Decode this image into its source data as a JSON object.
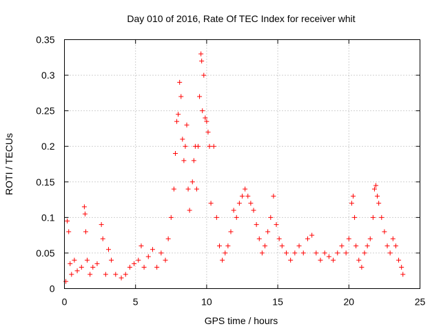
{
  "chart_data": {
    "type": "scatter",
    "title": "Day 010 of 2016, Rate Of TEC Index for receiver whit",
    "xlabel": "GPS time / hours",
    "ylabel": "ROTI / TECUs",
    "xlim": [
      0,
      25
    ],
    "ylim": [
      0,
      0.35
    ],
    "x_ticks": [
      0,
      5,
      10,
      15,
      20,
      25
    ],
    "y_ticks": [
      0,
      0.05,
      0.1,
      0.15,
      0.2,
      0.25,
      0.3,
      0.35
    ],
    "x_tick_labels": [
      "0",
      "5",
      "10",
      "15",
      "20",
      "25"
    ],
    "y_tick_labels": [
      "0",
      "0.05",
      "0.1",
      "0.15",
      "0.2",
      "0.25",
      "0.3",
      "0.35"
    ],
    "grid": true,
    "marker": "+",
    "color": "#ff0000",
    "series": [
      {
        "name": "",
        "points": [
          [
            0.1,
            0.01
          ],
          [
            0.2,
            0.095
          ],
          [
            0.3,
            0.08
          ],
          [
            0.4,
            0.035
          ],
          [
            0.5,
            0.02
          ],
          [
            0.7,
            0.04
          ],
          [
            0.9,
            0.025
          ],
          [
            1.2,
            0.03
          ],
          [
            1.4,
            0.115
          ],
          [
            1.45,
            0.105
          ],
          [
            1.5,
            0.08
          ],
          [
            1.6,
            0.04
          ],
          [
            1.8,
            0.02
          ],
          [
            2.0,
            0.03
          ],
          [
            2.3,
            0.035
          ],
          [
            2.6,
            0.09
          ],
          [
            2.7,
            0.07
          ],
          [
            2.9,
            0.02
          ],
          [
            3.1,
            0.055
          ],
          [
            3.3,
            0.04
          ],
          [
            3.6,
            0.02
          ],
          [
            4.0,
            0.015
          ],
          [
            4.3,
            0.02
          ],
          [
            4.6,
            0.03
          ],
          [
            4.9,
            0.035
          ],
          [
            5.2,
            0.04
          ],
          [
            5.4,
            0.06
          ],
          [
            5.6,
            0.03
          ],
          [
            5.9,
            0.045
          ],
          [
            6.2,
            0.055
          ],
          [
            6.5,
            0.03
          ],
          [
            6.8,
            0.05
          ],
          [
            7.1,
            0.04
          ],
          [
            7.3,
            0.07
          ],
          [
            7.5,
            0.1
          ],
          [
            7.7,
            0.14
          ],
          [
            7.8,
            0.19
          ],
          [
            7.9,
            0.235
          ],
          [
            8.0,
            0.245
          ],
          [
            8.1,
            0.29
          ],
          [
            8.2,
            0.27
          ],
          [
            8.3,
            0.21
          ],
          [
            8.4,
            0.18
          ],
          [
            8.5,
            0.2
          ],
          [
            8.6,
            0.23
          ],
          [
            8.7,
            0.14
          ],
          [
            8.8,
            0.11
          ],
          [
            9.0,
            0.15
          ],
          [
            9.1,
            0.18
          ],
          [
            9.2,
            0.2
          ],
          [
            9.3,
            0.14
          ],
          [
            9.4,
            0.2
          ],
          [
            9.5,
            0.27
          ],
          [
            9.6,
            0.33
          ],
          [
            9.65,
            0.32
          ],
          [
            9.7,
            0.25
          ],
          [
            9.8,
            0.3
          ],
          [
            9.9,
            0.24
          ],
          [
            10.0,
            0.235
          ],
          [
            10.1,
            0.22
          ],
          [
            10.2,
            0.2
          ],
          [
            10.3,
            0.12
          ],
          [
            10.5,
            0.2
          ],
          [
            10.7,
            0.1
          ],
          [
            10.9,
            0.06
          ],
          [
            11.1,
            0.04
          ],
          [
            11.3,
            0.05
          ],
          [
            11.5,
            0.06
          ],
          [
            11.7,
            0.08
          ],
          [
            11.9,
            0.11
          ],
          [
            12.1,
            0.1
          ],
          [
            12.3,
            0.12
          ],
          [
            12.5,
            0.13
          ],
          [
            12.7,
            0.14
          ],
          [
            12.9,
            0.13
          ],
          [
            13.1,
            0.12
          ],
          [
            13.3,
            0.11
          ],
          [
            13.5,
            0.09
          ],
          [
            13.7,
            0.07
          ],
          [
            13.9,
            0.05
          ],
          [
            14.1,
            0.06
          ],
          [
            14.3,
            0.08
          ],
          [
            14.5,
            0.1
          ],
          [
            14.7,
            0.13
          ],
          [
            14.9,
            0.09
          ],
          [
            15.1,
            0.07
          ],
          [
            15.3,
            0.06
          ],
          [
            15.6,
            0.05
          ],
          [
            15.9,
            0.04
          ],
          [
            16.2,
            0.05
          ],
          [
            16.5,
            0.06
          ],
          [
            16.8,
            0.05
          ],
          [
            17.1,
            0.07
          ],
          [
            17.4,
            0.075
          ],
          [
            17.7,
            0.05
          ],
          [
            18.0,
            0.04
          ],
          [
            18.3,
            0.05
          ],
          [
            18.6,
            0.045
          ],
          [
            18.9,
            0.04
          ],
          [
            19.2,
            0.05
          ],
          [
            19.5,
            0.06
          ],
          [
            19.8,
            0.05
          ],
          [
            20.0,
            0.07
          ],
          [
            20.2,
            0.12
          ],
          [
            20.3,
            0.13
          ],
          [
            20.4,
            0.1
          ],
          [
            20.5,
            0.06
          ],
          [
            20.7,
            0.04
          ],
          [
            20.9,
            0.03
          ],
          [
            21.1,
            0.05
          ],
          [
            21.3,
            0.06
          ],
          [
            21.5,
            0.07
          ],
          [
            21.7,
            0.1
          ],
          [
            21.8,
            0.14
          ],
          [
            21.9,
            0.145
          ],
          [
            22.0,
            0.13
          ],
          [
            22.1,
            0.12
          ],
          [
            22.3,
            0.1
          ],
          [
            22.5,
            0.08
          ],
          [
            22.7,
            0.06
          ],
          [
            22.9,
            0.05
          ],
          [
            23.1,
            0.07
          ],
          [
            23.3,
            0.06
          ],
          [
            23.5,
            0.04
          ],
          [
            23.7,
            0.03
          ],
          [
            23.8,
            0.02
          ]
        ]
      }
    ]
  }
}
